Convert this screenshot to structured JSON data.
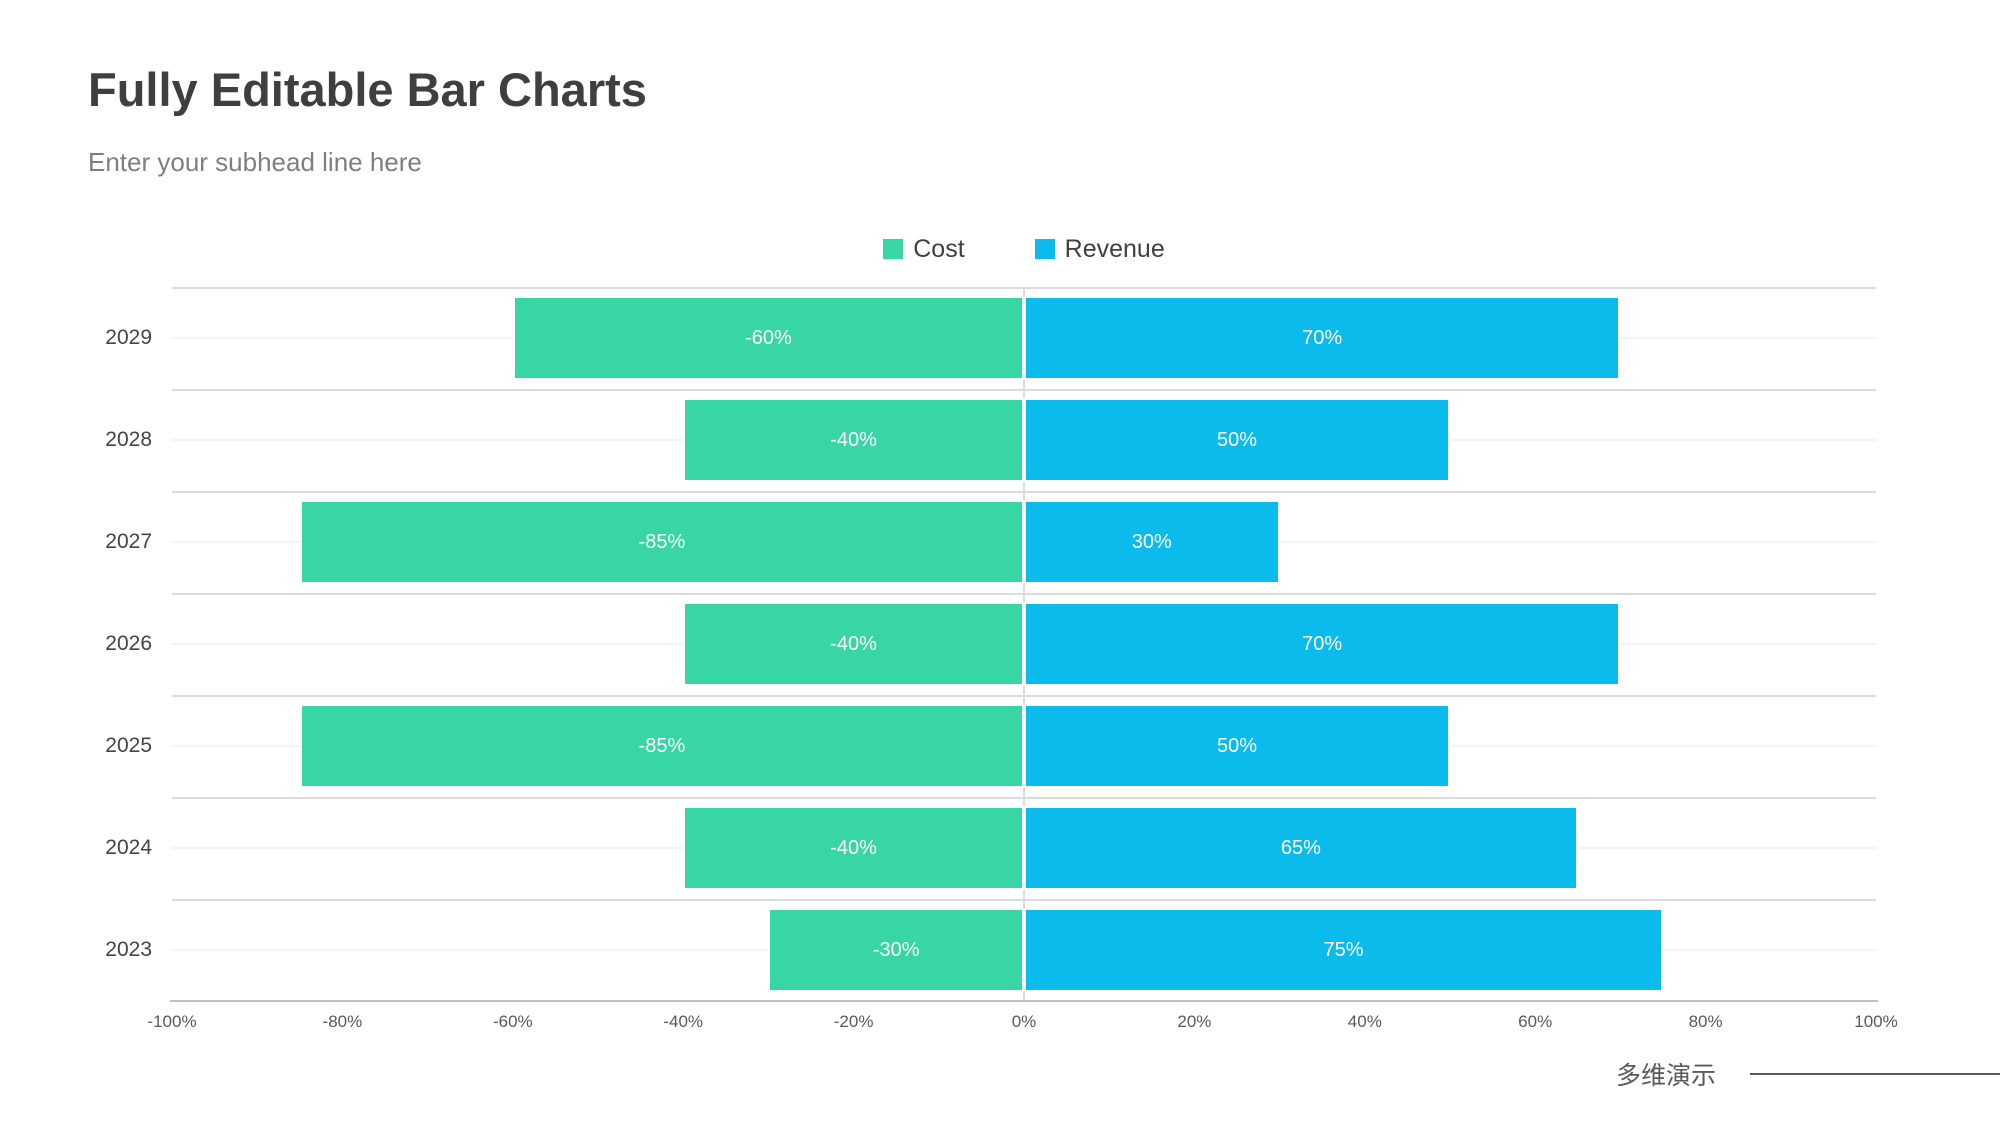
{
  "page": {
    "title": "Fully Editable Bar Charts",
    "subtitle": "Enter your subhead line here",
    "footer_text": "多维演示"
  },
  "colors": {
    "cost": "#38d6a4",
    "revenue": "#0bbbec",
    "bar_label": "#ffffff",
    "title_text": "#3f3f3f",
    "subtitle_text": "#7f7f7f",
    "gridline_major": "#dbdbdb",
    "gridline_minor": "#f3f3f3",
    "axis_line": "#c0c0c0",
    "footer_text_color": "#595959"
  },
  "chart_data": {
    "type": "bar",
    "orientation": "horizontal-diverging",
    "title": "Fully Editable Bar Charts",
    "categories": [
      "2029",
      "2028",
      "2027",
      "2026",
      "2025",
      "2024",
      "2023"
    ],
    "series": [
      {
        "name": "Cost",
        "color": "#38d6a4",
        "values": [
          -60,
          -40,
          -85,
          -40,
          -85,
          -40,
          -30
        ],
        "labels": [
          "-60%",
          "-40%",
          "-85%",
          "-40%",
          "-85%",
          "-40%",
          "-30%"
        ]
      },
      {
        "name": "Revenue",
        "color": "#0bbbec",
        "values": [
          70,
          50,
          30,
          70,
          50,
          65,
          75
        ],
        "labels": [
          "70%",
          "50%",
          "30%",
          "70%",
          "50%",
          "65%",
          "75%"
        ]
      }
    ],
    "xlim": [
      -100,
      100
    ],
    "x_ticks": [
      "-100%",
      "-80%",
      "-60%",
      "-40%",
      "-20%",
      "0%",
      "20%",
      "40%",
      "60%",
      "80%",
      "100%"
    ],
    "legend_position": "top-center",
    "grid": true
  }
}
